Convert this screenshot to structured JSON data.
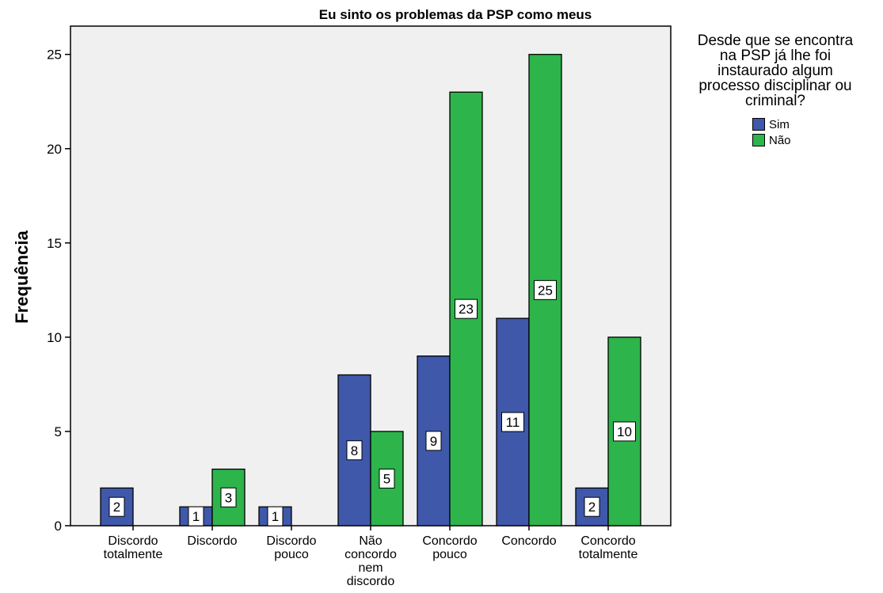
{
  "chart_data": {
    "type": "bar",
    "title": "Eu sinto os problemas da PSP como meus",
    "xlabel": "",
    "ylabel": "Frequência",
    "ylim": [
      0,
      26.5
    ],
    "yticks": [
      0,
      5,
      10,
      15,
      20,
      25
    ],
    "categories": [
      [
        "Discordo",
        "totalmente"
      ],
      [
        "Discordo"
      ],
      [
        "Discordo",
        "pouco"
      ],
      [
        "Não",
        "concordo",
        "nem",
        "discordo"
      ],
      [
        "Concordo",
        "pouco"
      ],
      [
        "Concordo"
      ],
      [
        "Concordo",
        "totalmente"
      ]
    ],
    "series": [
      {
        "name": "Sim",
        "color": "#3f58aa",
        "values": [
          2,
          1,
          1,
          8,
          9,
          11,
          2
        ]
      },
      {
        "name": "Não",
        "color": "#2db44b",
        "values": [
          null,
          3,
          null,
          5,
          23,
          25,
          10
        ]
      }
    ],
    "legend": {
      "title": "Desde que se encontra\nna PSP já lhe foi\ninstaurado algum\nprocesso disciplinar ou\ncriminal?",
      "placement": "right"
    },
    "plot_background": "#f0f0f0",
    "grid": false
  }
}
